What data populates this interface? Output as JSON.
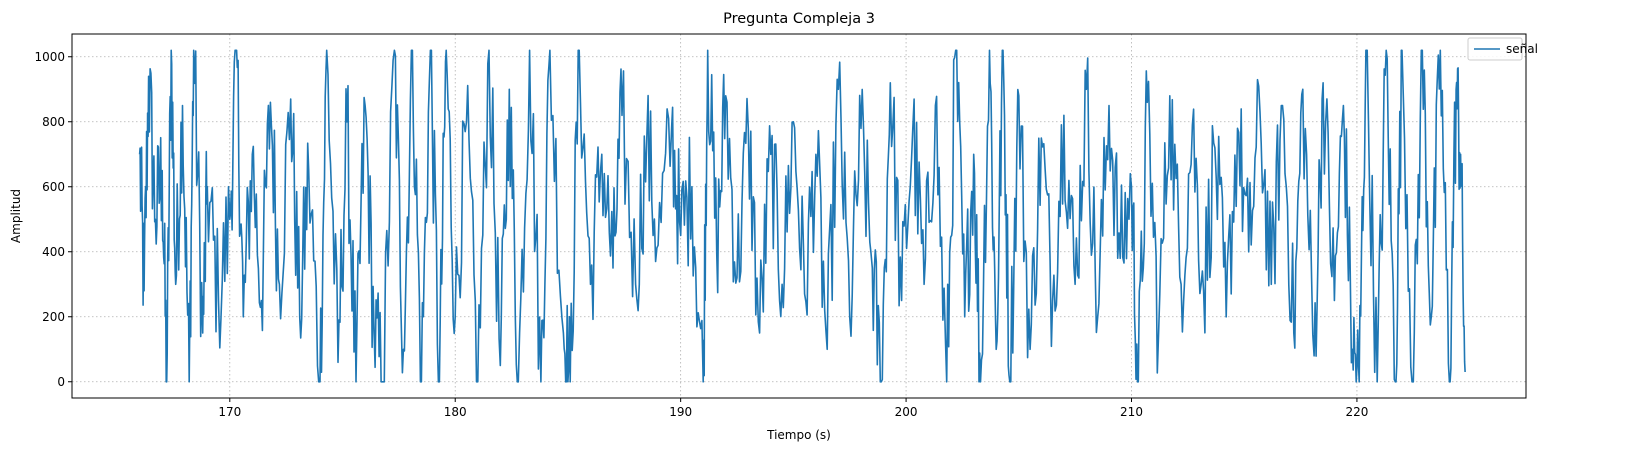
{
  "chart_data": {
    "type": "line",
    "title": "Pregunta Compleja 3",
    "xlabel": "Tiempo (s)",
    "ylabel": "Amplitud",
    "xlim": [
      163,
      227.5
    ],
    "ylim": [
      -50,
      1070
    ],
    "xticks": [
      170,
      180,
      190,
      200,
      210,
      220
    ],
    "yticks": [
      0,
      200,
      400,
      600,
      800,
      1000
    ],
    "grid": true,
    "legend": "top-right",
    "series": [
      {
        "name": "señal",
        "color": "#1f77b4",
        "x_start": 166.0,
        "x_end": 224.9,
        "keypoints": [
          [
            166.0,
            700
          ],
          [
            166.2,
            280
          ],
          [
            166.4,
            940
          ],
          [
            166.7,
            500
          ],
          [
            167.0,
            650
          ],
          [
            167.2,
            0
          ],
          [
            167.4,
            1020
          ],
          [
            167.6,
            300
          ],
          [
            167.9,
            850
          ],
          [
            168.2,
            0
          ],
          [
            168.4,
            1020
          ],
          [
            168.8,
            150
          ],
          [
            169.0,
            600
          ],
          [
            169.5,
            250
          ],
          [
            170.0,
            500
          ],
          [
            170.3,
            1020
          ],
          [
            170.6,
            200
          ],
          [
            171.0,
            700
          ],
          [
            171.4,
            250
          ],
          [
            171.8,
            860
          ],
          [
            172.2,
            300
          ],
          [
            172.7,
            870
          ],
          [
            173.1,
            200
          ],
          [
            173.5,
            650
          ],
          [
            174.0,
            0
          ],
          [
            174.3,
            1020
          ],
          [
            174.8,
            60
          ],
          [
            175.2,
            800
          ],
          [
            175.6,
            0
          ],
          [
            176.0,
            850
          ],
          [
            176.4,
            150
          ],
          [
            176.8,
            0
          ],
          [
            177.3,
            1020
          ],
          [
            177.7,
            100
          ],
          [
            178.1,
            1020
          ],
          [
            178.5,
            0
          ],
          [
            178.9,
            1020
          ],
          [
            179.3,
            0
          ],
          [
            179.6,
            1020
          ],
          [
            180.0,
            200
          ],
          [
            180.5,
            800
          ],
          [
            181.0,
            0
          ],
          [
            181.5,
            1020
          ],
          [
            182.0,
            50
          ],
          [
            182.4,
            900
          ],
          [
            182.8,
            0
          ],
          [
            183.3,
            1020
          ],
          [
            183.8,
            0
          ],
          [
            184.2,
            1020
          ],
          [
            184.8,
            150
          ],
          [
            185.1,
            0
          ],
          [
            185.5,
            1020
          ],
          [
            186.0,
            300
          ],
          [
            186.5,
            700
          ],
          [
            187.0,
            350
          ],
          [
            187.4,
            820
          ],
          [
            188.0,
            300
          ],
          [
            188.5,
            750
          ],
          [
            189.0,
            420
          ],
          [
            189.6,
            780
          ],
          [
            190.0,
            450
          ],
          [
            190.5,
            600
          ],
          [
            191.0,
            0
          ],
          [
            191.2,
            1020
          ],
          [
            191.6,
            400
          ],
          [
            192.0,
            880
          ],
          [
            192.5,
            320
          ],
          [
            193.0,
            780
          ],
          [
            193.5,
            150
          ],
          [
            194.0,
            700
          ],
          [
            194.5,
            300
          ],
          [
            195.0,
            800
          ],
          [
            195.5,
            270
          ],
          [
            196.0,
            700
          ],
          [
            196.5,
            100
          ],
          [
            197.0,
            900
          ],
          [
            197.5,
            200
          ],
          [
            198.0,
            780
          ],
          [
            198.5,
            350
          ],
          [
            198.9,
            0
          ],
          [
            199.3,
            920
          ],
          [
            199.8,
            250
          ],
          [
            200.3,
            780
          ],
          [
            200.8,
            300
          ],
          [
            201.3,
            850
          ],
          [
            201.8,
            0
          ],
          [
            202.2,
            1020
          ],
          [
            202.6,
            200
          ],
          [
            203.0,
            700
          ],
          [
            203.3,
            0
          ],
          [
            203.7,
            1020
          ],
          [
            204.0,
            100
          ],
          [
            204.3,
            1020
          ],
          [
            204.6,
            0
          ],
          [
            205.0,
            880
          ],
          [
            205.5,
            100
          ],
          [
            206.0,
            750
          ],
          [
            206.5,
            250
          ],
          [
            207.0,
            820
          ],
          [
            207.5,
            300
          ],
          [
            208.0,
            900
          ],
          [
            208.5,
            200
          ],
          [
            209.0,
            850
          ],
          [
            209.5,
            380
          ],
          [
            210.0,
            600
          ],
          [
            210.3,
            0
          ],
          [
            210.7,
            860
          ],
          [
            211.2,
            150
          ],
          [
            211.7,
            880
          ],
          [
            212.2,
            300
          ],
          [
            212.7,
            790
          ],
          [
            213.2,
            280
          ],
          [
            213.7,
            720
          ],
          [
            214.2,
            200
          ],
          [
            214.7,
            780
          ],
          [
            215.2,
            400
          ],
          [
            215.7,
            830
          ],
          [
            216.2,
            300
          ],
          [
            216.7,
            850
          ],
          [
            217.2,
            150
          ],
          [
            217.6,
            900
          ],
          [
            218.1,
            80
          ],
          [
            218.5,
            920
          ],
          [
            219.0,
            250
          ],
          [
            219.4,
            850
          ],
          [
            219.8,
            100
          ],
          [
            220.1,
            0
          ],
          [
            220.4,
            1020
          ],
          [
            220.9,
            0
          ],
          [
            221.3,
            1020
          ],
          [
            221.7,
            0
          ],
          [
            222.0,
            1020
          ],
          [
            222.5,
            0
          ],
          [
            222.9,
            1020
          ],
          [
            223.3,
            200
          ],
          [
            223.7,
            1020
          ],
          [
            224.1,
            0
          ],
          [
            224.4,
            900
          ],
          [
            224.6,
            700
          ],
          [
            224.8,
            30
          ]
        ]
      }
    ]
  }
}
